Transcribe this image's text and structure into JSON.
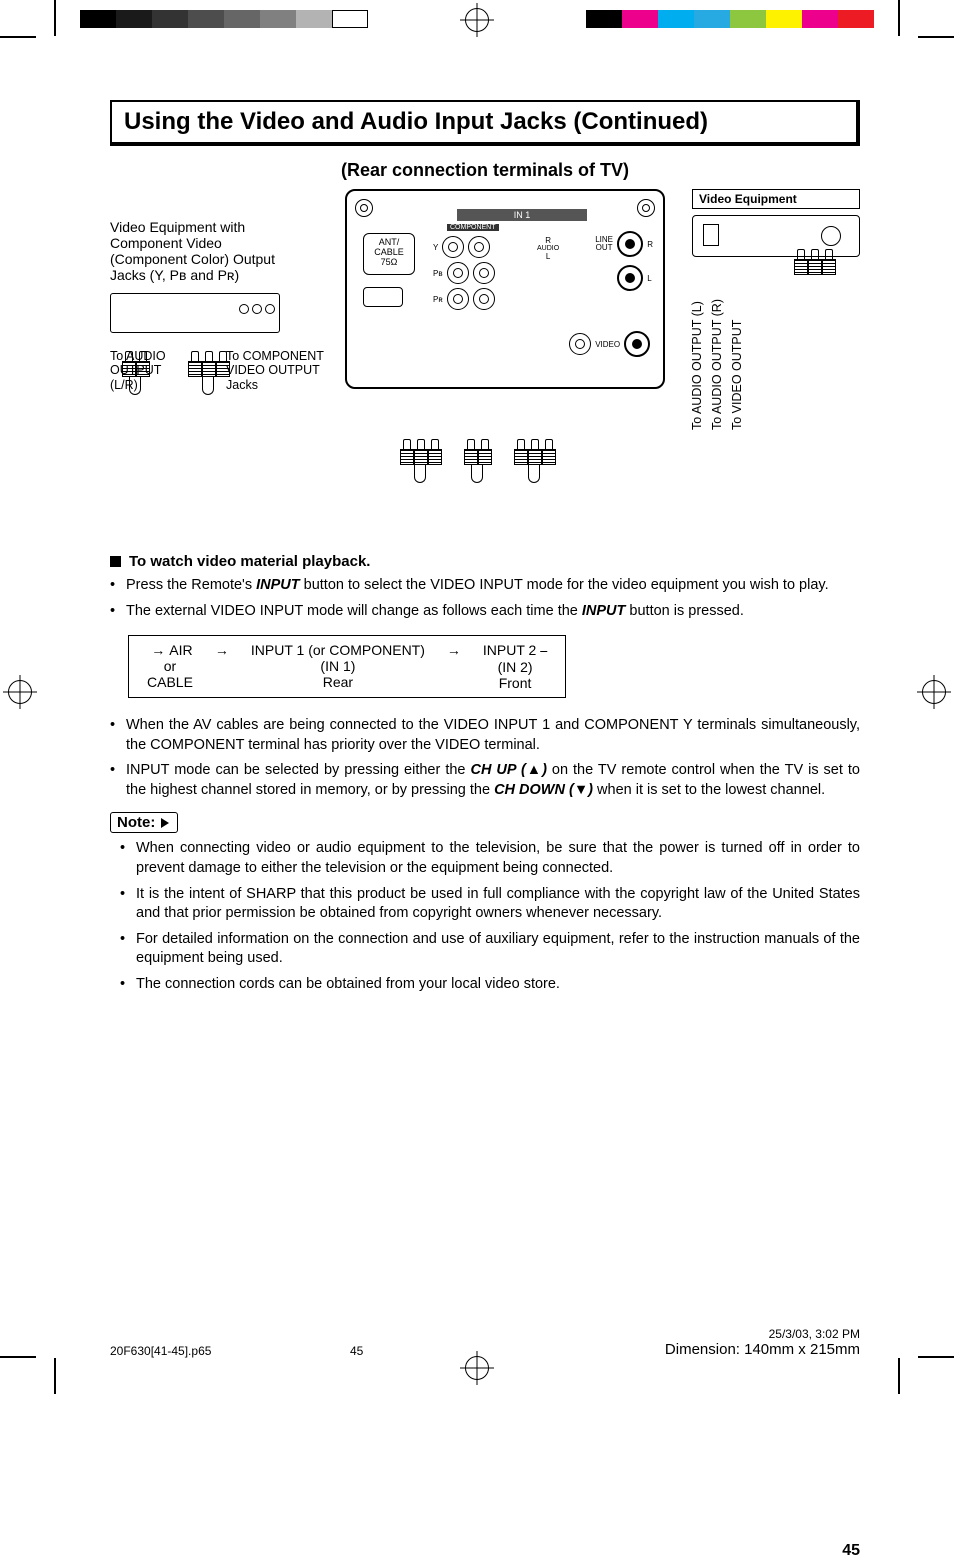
{
  "print_marks": {
    "left_swatches": [
      "#000000",
      "#1a1a1a",
      "#333333",
      "#4d4d4d",
      "#666666",
      "#808080",
      "#b3b3b3",
      "#ffffff"
    ],
    "right_swatches": [
      "#000000",
      "#ec008c",
      "#00aeef",
      "#27aae1",
      "#8dc63f",
      "#fff200",
      "#ec008c",
      "#ed1c24"
    ]
  },
  "title": "Using the Video and Audio Input Jacks (Continued)",
  "subtitle": "(Rear connection terminals of TV)",
  "diagram": {
    "left_equipment_text": "Video Equipment with Component Video (Component Color) Output Jacks (Y, Pʙ and Pʀ)",
    "video_equipment_box": "Video Equipment",
    "tv_panel": {
      "in1": "IN 1",
      "ant": "ANT/\nCABLE\n75Ω",
      "component": "COMPONENT",
      "y": "Y",
      "pb": "Pʙ",
      "pr": "Pʀ",
      "audio": "AUDIO",
      "r": "R",
      "l": "L",
      "lineout": "LINE\nOUT",
      "video": "VIDEO"
    },
    "left_label_1": "To AUDIO OUTPUT (L/R)",
    "left_label_2": "To COMPONENT VIDEO OUTPUT Jacks",
    "right_labels": [
      "To AUDIO OUTPUT (L)",
      "To AUDIO OUTPUT (R)",
      "To VIDEO OUTPUT"
    ]
  },
  "section_playback": {
    "heading": "To watch video material playback.",
    "bullets": [
      {
        "pre": "Press the Remote's ",
        "b": "INPUT",
        "post": " button to select the VIDEO INPUT mode for the video equipment you wish to play."
      },
      {
        "pre": "The external VIDEO INPUT mode will change as follows each time the ",
        "b": "INPUT",
        "post": " button is pressed."
      }
    ],
    "flow": {
      "cols": [
        [
          "AIR",
          "or",
          "CABLE"
        ],
        [
          "INPUT 1 (or COMPONENT)",
          "(IN 1)",
          "Rear"
        ],
        [
          "INPUT 2",
          "(IN 2)",
          "Front"
        ]
      ]
    },
    "bullets2": [
      "When the AV cables are being connected to the VIDEO INPUT 1 and COMPONENT Y terminals simultaneously, the COMPONENT terminal has priority over the VIDEO terminal.",
      {
        "text": "INPUT mode can be selected by pressing either the ",
        "b1": "CH UP (▲)",
        "mid": " on the TV remote control when the TV is set to the highest channel stored in memory, or by pressing the ",
        "b2": "CH DOWN (▼)",
        "post": " when it is set to the lowest channel."
      }
    ]
  },
  "note": {
    "label": "Note:",
    "items": [
      "When connecting video or audio equipment to the television, be sure that the power is turned off in order to prevent damage to either the television or the equipment being connected.",
      "It is the intent of SHARP that this product be used in full compliance with the copyright law of the United States and that prior permission be obtained from copyright owners whenever necessary.",
      "For detailed information on the connection and use of auxiliary equipment, refer to the instruction manuals of the equipment being used.",
      "The connection cords can be obtained from your local video store."
    ]
  },
  "page_number": "45",
  "footer": {
    "left_file": "20F630[41-45].p65",
    "left_page": "45",
    "right_datetime": "25/3/03, 3:02 PM",
    "dimension": "Dimension: 140mm x 215mm"
  }
}
